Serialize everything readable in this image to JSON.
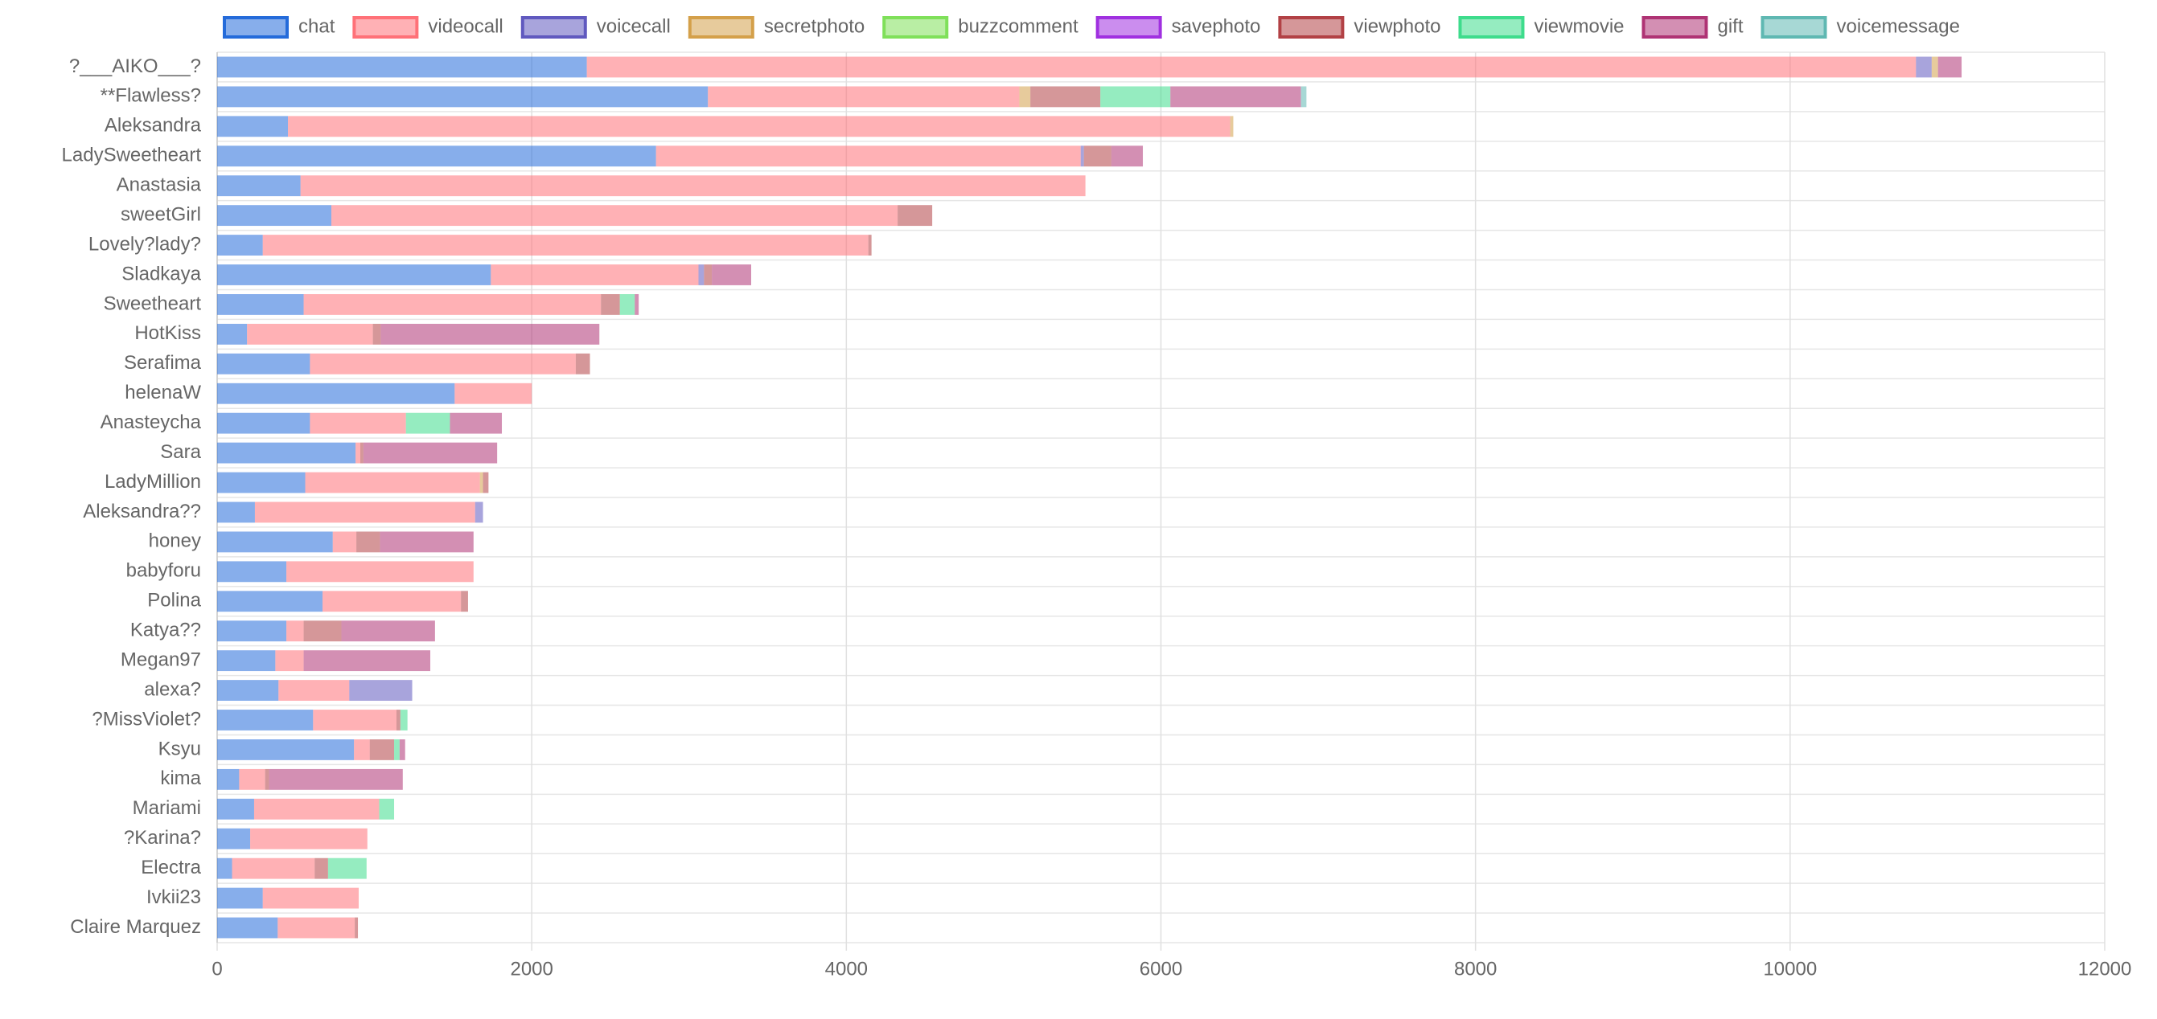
{
  "chart_data": {
    "type": "stacked-horizontal-bar",
    "categories": [
      "?___AIKO___?",
      "**Flawless?",
      "Aleksandra",
      "LadySweetheart",
      "Anastasia",
      "sweetGirl",
      "Lovely?lady?",
      "Sladkaya",
      "Sweetheart",
      "HotKiss",
      "Serafima",
      "helenaW",
      "Anasteycha",
      "Sara",
      "LadyMillion",
      "Aleksandra??",
      "honey",
      "babyforu",
      "Polina",
      "Katya??",
      "Megan97",
      "alexa?",
      "?MissViolet?",
      "Ksyu",
      "kima",
      "Mariami",
      "?Karina?",
      "Electra",
      "Ivkii23",
      "Claire Marquez"
    ],
    "series": [
      {
        "name": "chat",
        "color": "#246bda",
        "values": [
          2350,
          3120,
          450,
          2790,
          530,
          726,
          290,
          1740,
          550,
          190,
          590,
          1510,
          590,
          880,
          560,
          240,
          735,
          440,
          670,
          440,
          370,
          390,
          610,
          870,
          140,
          235,
          210,
          95,
          290,
          385
        ]
      },
      {
        "name": "videocall",
        "color": "#ff7178",
        "values": [
          8450,
          1980,
          5990,
          2700,
          4990,
          3600,
          3850,
          1320,
          1890,
          800,
          1690,
          490,
          610,
          30,
          1110,
          1400,
          150,
          1190,
          880,
          110,
          180,
          450,
          530,
          100,
          165,
          795,
          745,
          525,
          610,
          490
        ]
      },
      {
        "name": "voicecall",
        "color": "#6059bf",
        "values": [
          100,
          0,
          0,
          20,
          0,
          0,
          0,
          35,
          0,
          0,
          0,
          0,
          0,
          0,
          0,
          50,
          0,
          0,
          0,
          0,
          0,
          400,
          0,
          0,
          0,
          0,
          0,
          0,
          0,
          0
        ]
      },
      {
        "name": "secretphoto",
        "color": "#d4a04a",
        "values": [
          40,
          70,
          20,
          0,
          0,
          0,
          0,
          0,
          0,
          0,
          0,
          0,
          0,
          0,
          20,
          0,
          0,
          0,
          0,
          0,
          0,
          0,
          0,
          0,
          0,
          0,
          0,
          0,
          0,
          0
        ]
      },
      {
        "name": "buzzcomment",
        "color": "#7fe05a",
        "values": [
          0,
          0,
          0,
          0,
          0,
          0,
          0,
          0,
          0,
          0,
          0,
          0,
          0,
          0,
          0,
          0,
          0,
          0,
          0,
          0,
          0,
          0,
          0,
          0,
          0,
          0,
          0,
          0,
          0,
          0
        ]
      },
      {
        "name": "savephoto",
        "color": "#a030e0",
        "values": [
          0,
          0,
          0,
          0,
          0,
          0,
          0,
          0,
          0,
          0,
          0,
          0,
          0,
          0,
          0,
          0,
          0,
          0,
          0,
          0,
          0,
          0,
          0,
          0,
          0,
          0,
          0,
          0,
          0,
          0
        ]
      },
      {
        "name": "viewphoto",
        "color": "#b24145",
        "values": [
          0,
          445,
          0,
          175,
          0,
          220,
          20,
          50,
          120,
          50,
          90,
          0,
          0,
          20,
          35,
          0,
          150,
          0,
          45,
          240,
          0,
          0,
          25,
          155,
          25,
          0,
          0,
          85,
          0,
          20
        ]
      },
      {
        "name": "viewmovie",
        "color": "#3edc8c",
        "values": [
          0,
          445,
          0,
          0,
          0,
          0,
          0,
          0,
          95,
          0,
          0,
          0,
          280,
          0,
          0,
          0,
          0,
          0,
          0,
          0,
          0,
          0,
          45,
          35,
          0,
          95,
          0,
          245,
          0,
          0
        ]
      },
      {
        "name": "gift",
        "color": "#af3374",
        "values": [
          150,
          830,
          0,
          200,
          0,
          0,
          0,
          250,
          25,
          1390,
          0,
          0,
          330,
          850,
          0,
          0,
          595,
          0,
          0,
          595,
          805,
          0,
          0,
          35,
          850,
          0,
          0,
          0,
          0,
          0
        ]
      },
      {
        "name": "voicemessage",
        "color": "#5fb8b2",
        "values": [
          0,
          35,
          0,
          0,
          0,
          0,
          0,
          0,
          0,
          0,
          0,
          0,
          0,
          0,
          0,
          0,
          0,
          0,
          0,
          0,
          0,
          0,
          0,
          0,
          0,
          0,
          0,
          0,
          0,
          0
        ]
      }
    ],
    "xlim": [
      0,
      12000
    ],
    "xticks": [
      0,
      2000,
      4000,
      6000,
      8000,
      10000,
      12000
    ],
    "grid": true,
    "legend": "top"
  }
}
